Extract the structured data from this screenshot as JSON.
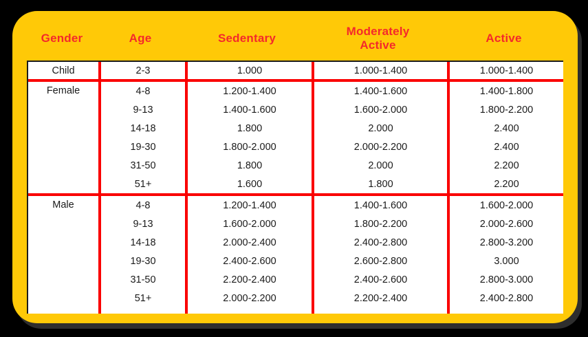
{
  "theme": {
    "bg": "#000000",
    "card": "#FFC907",
    "red_line": "#FA0000",
    "red_text": "#F4292B",
    "text": "#1A1A1A",
    "white": "#FFFFFF",
    "shadow": "#2E2E2E",
    "table_border": "#1C1C1C"
  },
  "chart_data": {
    "type": "table",
    "columns": [
      "Gender",
      "Age",
      "Sedentary",
      "Moderately Active",
      "Active"
    ],
    "sections": [
      {
        "gender": "Child",
        "rows": [
          {
            "age": "2-3",
            "sedentary": "1.000",
            "moderately_active": "1.000-1.400",
            "active": "1.000-1.400"
          }
        ]
      },
      {
        "gender": "Female",
        "rows": [
          {
            "age": "4-8",
            "sedentary": "1.200-1.400",
            "moderately_active": "1.400-1.600",
            "active": "1.400-1.800"
          },
          {
            "age": "9-13",
            "sedentary": "1.400-1.600",
            "moderately_active": "1.600-2.000",
            "active": "1.800-2.200"
          },
          {
            "age": "14-18",
            "sedentary": "1.800",
            "moderately_active": "2.000",
            "active": "2.400"
          },
          {
            "age": "19-30",
            "sedentary": "1.800-2.000",
            "moderately_active": "2.000-2.200",
            "active": "2.400"
          },
          {
            "age": "31-50",
            "sedentary": "1.800",
            "moderately_active": "2.000",
            "active": "2.200"
          },
          {
            "age": "51+",
            "sedentary": "1.600",
            "moderately_active": "1.800",
            "active": "2.200"
          }
        ]
      },
      {
        "gender": "Male",
        "rows": [
          {
            "age": "4-8",
            "sedentary": "1.200-1.400",
            "moderately_active": "1.400-1.600",
            "active": "1.600-2.000"
          },
          {
            "age": "9-13",
            "sedentary": "1.600-2.000",
            "moderately_active": "1.800-2.200",
            "active": "2.000-2.600"
          },
          {
            "age": "14-18",
            "sedentary": "2.000-2.400",
            "moderately_active": "2.400-2.800",
            "active": "2.800-3.200"
          },
          {
            "age": "19-30",
            "sedentary": "2.400-2.600",
            "moderately_active": "2.600-2.800",
            "active": "3.000"
          },
          {
            "age": "31-50",
            "sedentary": "2.200-2.400",
            "moderately_active": "2.400-2.600",
            "active": "2.800-3.000"
          },
          {
            "age": "51+",
            "sedentary": "2.000-2.200",
            "moderately_active": "2.200-2.400",
            "active": "2.400-2.800"
          }
        ]
      }
    ]
  }
}
